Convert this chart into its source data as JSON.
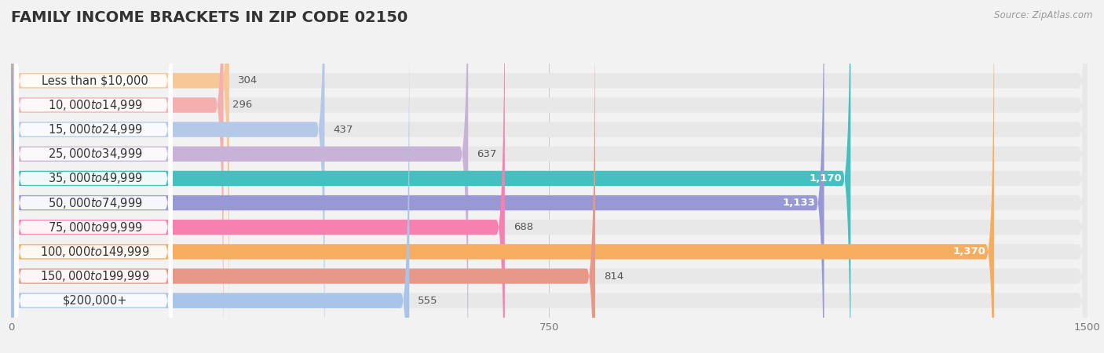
{
  "title": "FAMILY INCOME BRACKETS IN ZIP CODE 02150",
  "source": "Source: ZipAtlas.com",
  "categories": [
    "Less than $10,000",
    "$10,000 to $14,999",
    "$15,000 to $24,999",
    "$25,000 to $34,999",
    "$35,000 to $49,999",
    "$50,000 to $74,999",
    "$75,000 to $99,999",
    "$100,000 to $149,999",
    "$150,000 to $199,999",
    "$200,000+"
  ],
  "values": [
    304,
    296,
    437,
    637,
    1170,
    1133,
    688,
    1370,
    814,
    555
  ],
  "bar_colors": [
    "#f5c896",
    "#f5afaf",
    "#b5c8e8",
    "#c8b2d8",
    "#45bfc0",
    "#9898d4",
    "#f880b0",
    "#f5ae60",
    "#e89888",
    "#a8c4e8"
  ],
  "xlim": [
    0,
    1500
  ],
  "xticks": [
    0,
    750,
    1500
  ],
  "background_color": "#f2f2f2",
  "bar_bg_color": "#e8e8e8",
  "bar_height": 0.62,
  "title_fontsize": 14,
  "label_fontsize": 10.5,
  "value_fontsize": 9.5,
  "value_threshold": 900
}
